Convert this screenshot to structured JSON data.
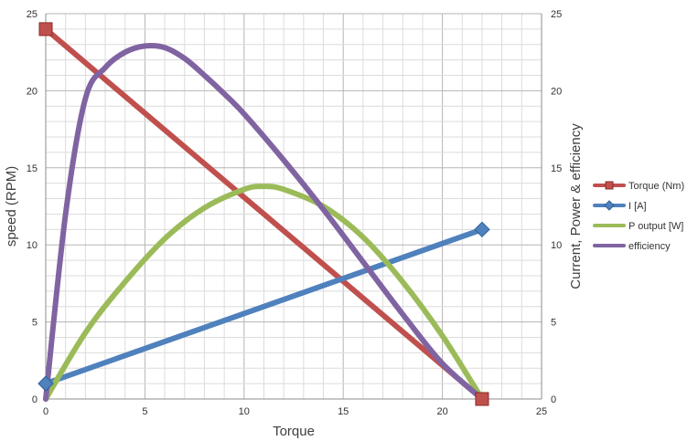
{
  "chart_data": {
    "type": "line",
    "title": "",
    "xlabel": "Torque",
    "ylabel": "speed (RPM)",
    "y2label": "Current, Power & efficiency",
    "xlim": [
      0,
      25
    ],
    "ylim": [
      0,
      25
    ],
    "y2lim": [
      0,
      25
    ],
    "x_ticks": [
      "0",
      "5",
      "10",
      "15",
      "20",
      "25"
    ],
    "y_ticks": [
      "0",
      "5",
      "10",
      "15",
      "20",
      "25"
    ],
    "y2_ticks": [
      "0",
      "5",
      "10",
      "15",
      "20",
      "25"
    ],
    "grid": true,
    "legend_position": "right",
    "series": [
      {
        "name": "Torque (Nm)",
        "color": "#c0504d",
        "marker": "square",
        "axis": "left",
        "x": [
          0,
          22
        ],
        "y": [
          24,
          0
        ]
      },
      {
        "name": "I [A]",
        "color": "#4f81bd",
        "marker": "diamond",
        "axis": "right",
        "x": [
          0,
          22
        ],
        "y": [
          1,
          11
        ]
      },
      {
        "name": "P output [W]",
        "color": "#9bbb59",
        "marker": "none",
        "axis": "right",
        "x": [
          0,
          2,
          4,
          6,
          8,
          10,
          11,
          12,
          14,
          16,
          18,
          20,
          22
        ],
        "y": [
          0,
          4.3,
          7.6,
          10.4,
          12.4,
          13.6,
          13.8,
          13.6,
          12.5,
          10.5,
          7.6,
          4.1,
          0
        ]
      },
      {
        "name": "efficiency",
        "color": "#8064a2",
        "marker": "none",
        "axis": "right",
        "x": [
          0,
          1,
          2,
          3,
          4,
          5,
          6,
          7,
          8,
          9,
          10,
          12,
          14,
          16,
          18,
          20,
          22
        ],
        "y": [
          0,
          12,
          19.5,
          21.5,
          22.5,
          22.9,
          22.8,
          22.1,
          21,
          19.8,
          18.5,
          15.5,
          12.3,
          8.9,
          5.5,
          2.3,
          0
        ]
      }
    ]
  }
}
